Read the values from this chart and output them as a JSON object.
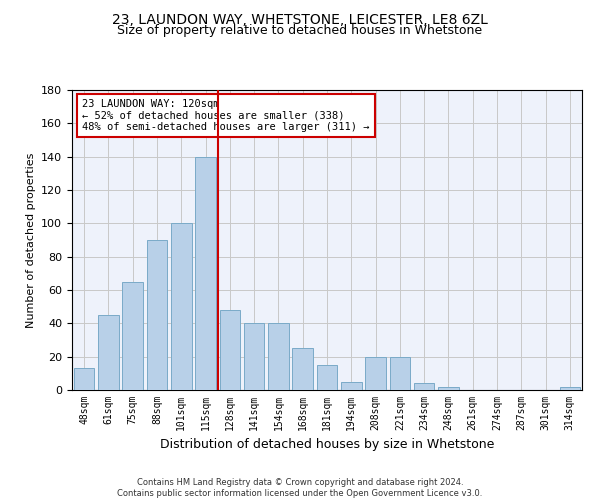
{
  "title1": "23, LAUNDON WAY, WHETSTONE, LEICESTER, LE8 6ZL",
  "title2": "Size of property relative to detached houses in Whetstone",
  "xlabel": "Distribution of detached houses by size in Whetstone",
  "ylabel": "Number of detached properties",
  "bar_color": "#b8d0e8",
  "bar_edge_color": "#7aaac8",
  "categories": [
    "48sqm",
    "61sqm",
    "75sqm",
    "88sqm",
    "101sqm",
    "115sqm",
    "128sqm",
    "141sqm",
    "154sqm",
    "168sqm",
    "181sqm",
    "194sqm",
    "208sqm",
    "221sqm",
    "234sqm",
    "248sqm",
    "261sqm",
    "274sqm",
    "287sqm",
    "301sqm",
    "314sqm"
  ],
  "values": [
    13,
    45,
    65,
    90,
    100,
    140,
    48,
    40,
    40,
    25,
    15,
    5,
    20,
    20,
    4,
    2,
    0,
    0,
    0,
    0,
    2
  ],
  "ylim": [
    0,
    180
  ],
  "yticks": [
    0,
    20,
    40,
    60,
    80,
    100,
    120,
    140,
    160,
    180
  ],
  "vline_x": 5.5,
  "vline_color": "#cc0000",
  "annotation_text": "23 LAUNDON WAY: 120sqm\n← 52% of detached houses are smaller (338)\n48% of semi-detached houses are larger (311) →",
  "footer": "Contains HM Land Registry data © Crown copyright and database right 2024.\nContains public sector information licensed under the Open Government Licence v3.0.",
  "background_color": "#eef2fb",
  "grid_color": "#c8c8c8",
  "title1_fontsize": 10,
  "title2_fontsize": 9,
  "ylabel_fontsize": 8,
  "xlabel_fontsize": 9,
  "bar_width": 0.85,
  "footer_fontsize": 6
}
